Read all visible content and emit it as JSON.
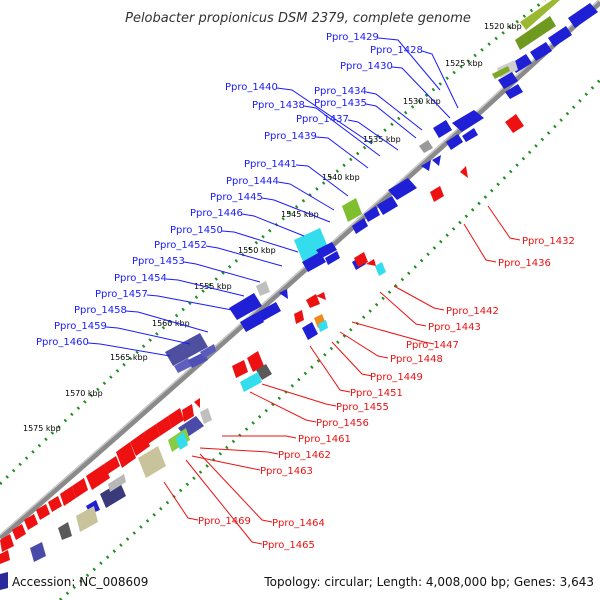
{
  "title": "Pelobacter propionicus DSM 2379, complete genome",
  "footer": {
    "accession": "Accession: NC_008609",
    "topology": "Topology: circular; Length: 4,008,000 bp; Genes: 3,643"
  },
  "colors": {
    "forward_gene": "#1f1fd6",
    "reverse_gene": "#ee1111",
    "backbone": "#7f7f7f",
    "tick_dots": "#1f8f1f",
    "label_forward": "#1a1aff",
    "label_reverse": "#ee1111"
  },
  "kbp_markers": [
    "1520 kbp",
    "1525 kbp",
    "1530 kbp",
    "1535 kbp",
    "1540 kbp",
    "1545 kbp",
    "1550 kbp",
    "1555 kbp",
    "1560 kbp",
    "1565 kbp",
    "1570 kbp",
    "1575 kbp"
  ],
  "forward_genes": [
    "Ppro_1429",
    "Ppro_1428",
    "Ppro_1430",
    "Ppro_1440",
    "Ppro_1434",
    "Ppro_1435",
    "Ppro_1438",
    "Ppro_1437",
    "Ppro_1439",
    "Ppro_1441",
    "Ppro_1444",
    "Ppro_1445",
    "Ppro_1446",
    "Ppro_1450",
    "Ppro_1452",
    "Ppro_1453",
    "Ppro_1454",
    "Ppro_1457",
    "Ppro_1458",
    "Ppro_1459",
    "Ppro_1460"
  ],
  "reverse_genes": [
    "Ppro_1432",
    "Ppro_1436",
    "Ppro_1442",
    "Ppro_1443",
    "Ppro_1447",
    "Ppro_1448",
    "Ppro_1449",
    "Ppro_1451",
    "Ppro_1455",
    "Ppro_1456",
    "Ppro_1461",
    "Ppro_1462",
    "Ppro_1463",
    "Ppro_1464",
    "Ppro_1465",
    "Ppro_1469"
  ]
}
